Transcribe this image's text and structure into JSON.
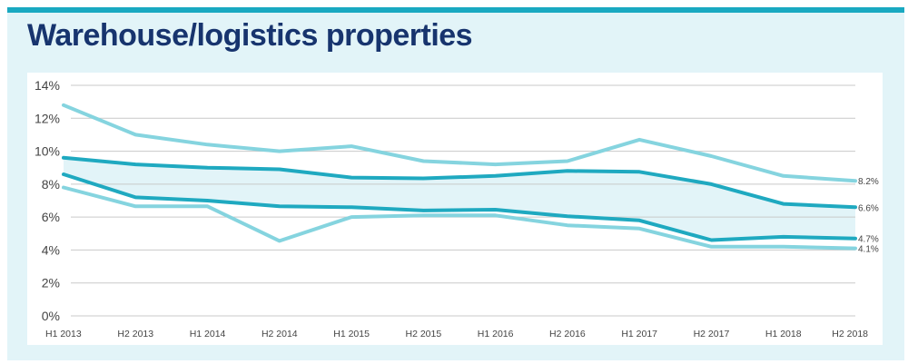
{
  "title": "Warehouse/logistics properties",
  "colors": {
    "accent_bar": "#19a9c1",
    "title": "#17346e",
    "panel_bg": "#e2f4f8",
    "light_line": "#85d4df",
    "dark_line": "#1fa9c0",
    "band_fill": "#e2f4f8"
  },
  "chart_data": {
    "type": "line",
    "categories": [
      "H1 2013",
      "H2 2013",
      "H1 2014",
      "H2 2014",
      "H1 2015",
      "H2 2015",
      "H1 2016",
      "H2 2016",
      "H1 2017",
      "H2 2017",
      "H1 2018",
      "H2 2018"
    ],
    "ylim": [
      0,
      14
    ],
    "yticks": [
      0,
      2,
      4,
      6,
      8,
      10,
      12,
      14
    ],
    "ytick_labels": [
      "0%",
      "2%",
      "4%",
      "6%",
      "8%",
      "10%",
      "12%",
      "14%"
    ],
    "grid": true,
    "band_between": [
      1,
      2
    ],
    "series": [
      {
        "values": [
          12.8,
          11.0,
          10.4,
          10.0,
          10.3,
          9.4,
          9.2,
          9.4,
          10.7,
          9.7,
          8.5,
          8.2
        ],
        "end_label": "8.2%",
        "style": "light"
      },
      {
        "values": [
          9.6,
          9.2,
          9.0,
          8.9,
          8.4,
          8.35,
          8.5,
          8.8,
          8.75,
          8.0,
          6.8,
          6.6
        ],
        "end_label": "6.6%",
        "style": "dark"
      },
      {
        "values": [
          8.6,
          7.2,
          7.0,
          6.65,
          6.6,
          6.4,
          6.45,
          6.05,
          5.8,
          4.6,
          4.8,
          4.7
        ],
        "end_label": "4.7%",
        "style": "dark"
      },
      {
        "values": [
          7.8,
          6.65,
          6.65,
          4.55,
          6.0,
          6.1,
          6.1,
          5.5,
          5.3,
          4.2,
          4.2,
          4.1
        ],
        "end_label": "4.1%",
        "style": "light"
      }
    ]
  }
}
